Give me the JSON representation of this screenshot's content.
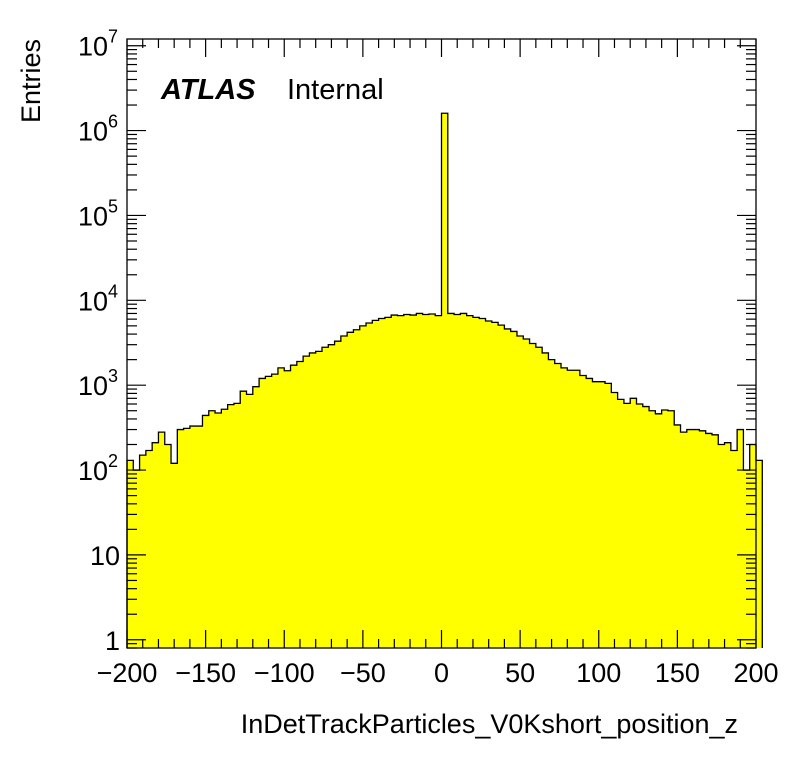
{
  "chart_data": {
    "type": "bar",
    "style": "histogram",
    "fill_color": "#ffff00",
    "line_color": "#000000",
    "xlabel": "InDetTrackParticles_V0Kshort_position_z",
    "ylabel": "Entries",
    "xlim": [
      -200,
      200
    ],
    "ylim": [
      0.8,
      12000000
    ],
    "yscale": "log",
    "bin_width": 4,
    "x_ticks": [
      "−200",
      "−150",
      "−100",
      "−50",
      "0",
      "50",
      "100",
      "150",
      "200"
    ],
    "y_ticks": [
      {
        "base": "1",
        "exp": ""
      },
      {
        "base": "10",
        "exp": ""
      },
      {
        "base": "10",
        "exp": "2"
      },
      {
        "base": "10",
        "exp": "3"
      },
      {
        "base": "10",
        "exp": "4"
      },
      {
        "base": "10",
        "exp": "5"
      },
      {
        "base": "10",
        "exp": "6"
      },
      {
        "base": "10",
        "exp": "7"
      }
    ],
    "annotation": {
      "experiment": "ATLAS",
      "status": "Internal"
    },
    "x_edges_start": -200,
    "values": [
      130,
      100,
      150,
      170,
      210,
      280,
      200,
      120,
      300,
      310,
      330,
      330,
      440,
      500,
      470,
      520,
      590,
      610,
      850,
      780,
      960,
      1200,
      1270,
      1350,
      1600,
      1480,
      1720,
      1900,
      2200,
      2400,
      2500,
      2800,
      3000,
      3300,
      3800,
      4200,
      4500,
      5000,
      5400,
      5800,
      6100,
      6300,
      6700,
      6600,
      6800,
      6700,
      7000,
      6800,
      6900,
      6600,
      1600000,
      7000,
      6800,
      7000,
      6600,
      6300,
      6100,
      5700,
      5500,
      5100,
      4600,
      4300,
      3800,
      3500,
      3100,
      2800,
      2400,
      2000,
      1800,
      1600,
      1500,
      1500,
      1300,
      1200,
      1100,
      1100,
      1050,
      820,
      680,
      610,
      700,
      600,
      560,
      500,
      460,
      510,
      500,
      340,
      280,
      300,
      300,
      290,
      270,
      260,
      200,
      210,
      170,
      300,
      100,
      200,
      130
    ]
  }
}
